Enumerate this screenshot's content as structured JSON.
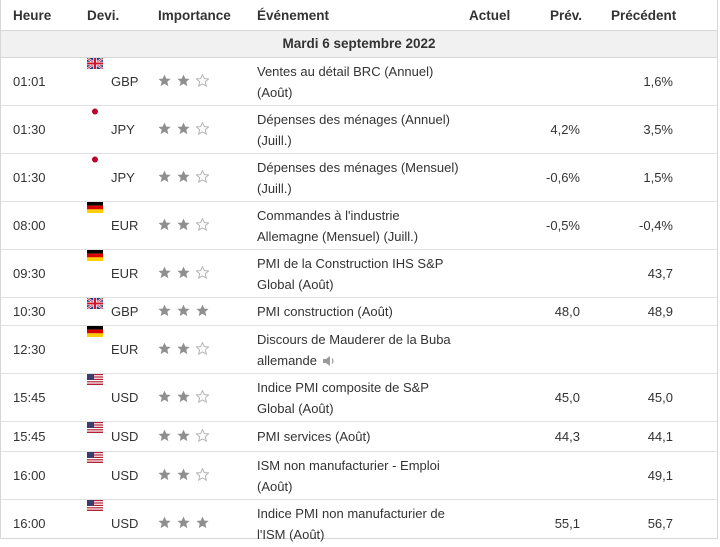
{
  "headers": {
    "time": "Heure",
    "currency": "Devi.",
    "importance": "Importance",
    "event": "Événement",
    "actual": "Actuel",
    "forecast": "Prév.",
    "previous": "Précédent"
  },
  "date_label": "Mardi 6 septembre 2022",
  "colors": {
    "star_filled": "#8f8f8f",
    "star_empty": "#b5b5b5",
    "date_bg": "#f1f1f1"
  },
  "rows": [
    {
      "time": "01:01",
      "currency": "GBP",
      "flag": "uk-flag-icon",
      "importance": 2,
      "event": "Ventes au détail BRC (Annuel) (Août)",
      "actual": "",
      "forecast": "",
      "previous": "1,6%"
    },
    {
      "time": "01:30",
      "currency": "JPY",
      "flag": "japan-flag-icon",
      "importance": 2,
      "event": "Dépenses des ménages (Annuel) (Juill.)",
      "actual": "",
      "forecast": "4,2%",
      "previous": "3,5%"
    },
    {
      "time": "01:30",
      "currency": "JPY",
      "flag": "japan-flag-icon",
      "importance": 2,
      "event": "Dépenses des ménages (Mensuel) (Juill.)",
      "actual": "",
      "forecast": "-0,6%",
      "previous": "1,5%"
    },
    {
      "time": "08:00",
      "currency": "EUR",
      "flag": "germany-flag-icon",
      "importance": 2,
      "event": "Commandes à l'industrie Allemagne (Mensuel) (Juill.)",
      "actual": "",
      "forecast": "-0,5%",
      "previous": "-0,4%"
    },
    {
      "time": "09:30",
      "currency": "EUR",
      "flag": "germany-flag-icon",
      "importance": 2,
      "event": "PMI de la Construction IHS S&P Global (Août)",
      "actual": "",
      "forecast": "",
      "previous": "43,7"
    },
    {
      "time": "10:30",
      "currency": "GBP",
      "flag": "uk-flag-icon",
      "importance": 3,
      "event": "PMI construction (Août)",
      "actual": "",
      "forecast": "48,0",
      "previous": "48,9"
    },
    {
      "time": "12:30",
      "currency": "EUR",
      "flag": "germany-flag-icon",
      "importance": 2,
      "event": "Discours de Mauderer de la Buba allemande",
      "speech": true,
      "actual": "",
      "forecast": "",
      "previous": ""
    },
    {
      "time": "15:45",
      "currency": "USD",
      "flag": "usa-flag-icon",
      "importance": 2,
      "event": "Indice PMI composite de S&P Global (Août)",
      "actual": "",
      "forecast": "45,0",
      "previous": "45,0"
    },
    {
      "time": "15:45",
      "currency": "USD",
      "flag": "usa-flag-icon",
      "importance": 2,
      "event": "PMI services (Août)",
      "actual": "",
      "forecast": "44,3",
      "previous": "44,1"
    },
    {
      "time": "16:00",
      "currency": "USD",
      "flag": "usa-flag-icon",
      "importance": 2,
      "event": "ISM non manufacturier - Emploi (Août)",
      "actual": "",
      "forecast": "",
      "previous": "49,1"
    },
    {
      "time": "16:00",
      "currency": "USD",
      "flag": "usa-flag-icon",
      "importance": 3,
      "event": "Indice PMI non manufacturier de l'ISM (Août)",
      "actual": "",
      "forecast": "55,1",
      "previous": "56,7"
    }
  ]
}
